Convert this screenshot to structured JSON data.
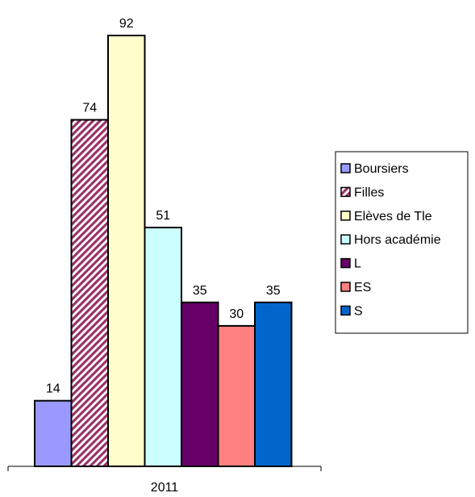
{
  "chart_data": {
    "type": "bar",
    "categories": [
      "2011"
    ],
    "series": [
      {
        "name": "Boursiers",
        "values": [
          14
        ],
        "color": "#9999ff"
      },
      {
        "name": "Filles",
        "values": [
          74
        ],
        "color": "#993366",
        "pattern": "diagonal-hatch"
      },
      {
        "name": "Elèves de Tle",
        "values": [
          92
        ],
        "color": "#ffffcc"
      },
      {
        "name": "Hors académie",
        "values": [
          51
        ],
        "color": "#ccffff"
      },
      {
        "name": "L",
        "values": [
          35
        ],
        "color": "#660066"
      },
      {
        "name": "ES",
        "values": [
          30
        ],
        "color": "#ff8080"
      },
      {
        "name": "S",
        "values": [
          35
        ],
        "color": "#0066cc"
      }
    ],
    "title": "",
    "xlabel": "",
    "ylabel": "",
    "ylim": [
      0,
      92
    ],
    "grid": false,
    "legend_position": "right"
  }
}
